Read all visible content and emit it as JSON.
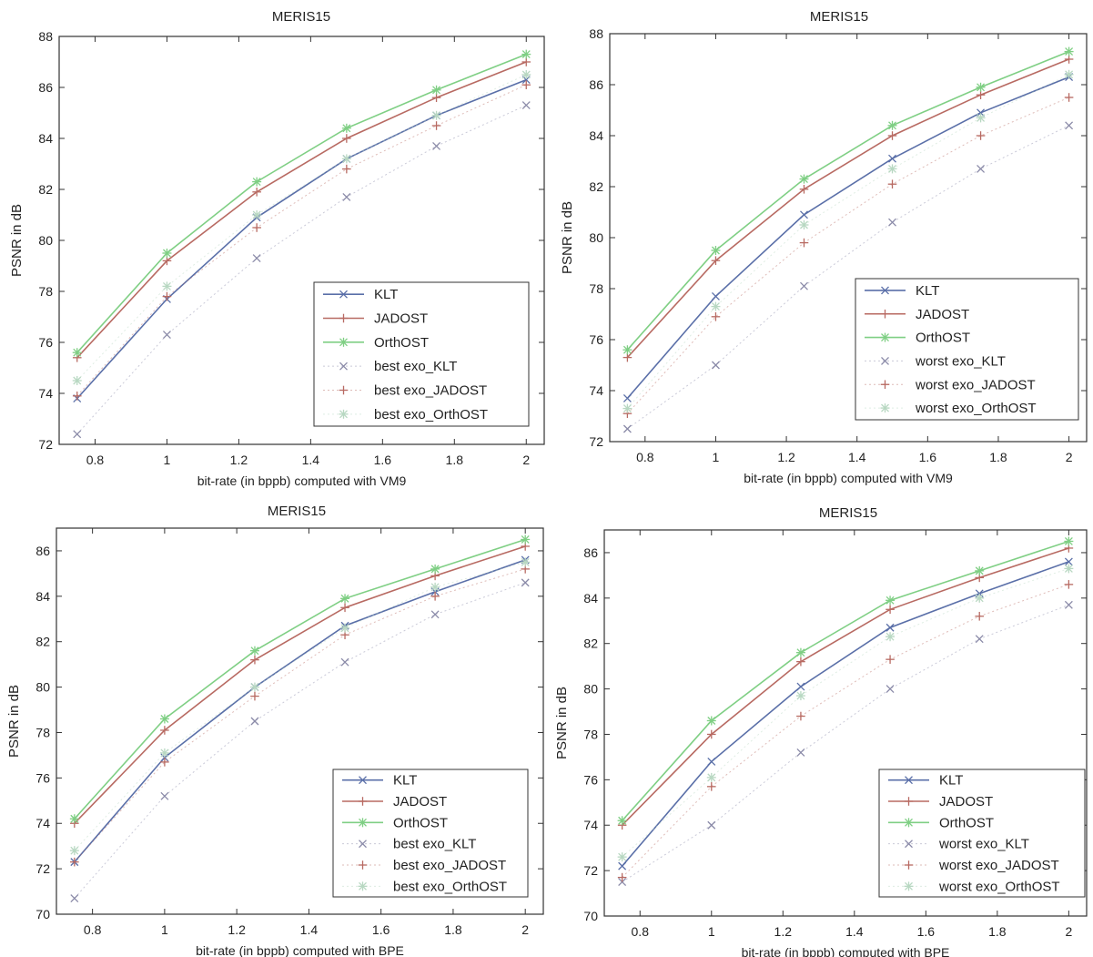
{
  "colors": {
    "KLT": "#5a6fa8",
    "JADOST": "#b86a62",
    "OrthOST": "#7fcf84",
    "exo_KLT": "#8a8aa8",
    "exo_JADOST": "#b86a62",
    "exo_OrthOST": "#b8d8c2"
  },
  "chart_data": [
    {
      "type": "line",
      "title": "MERIS15",
      "xlabel": "bit-rate (in bppb) computed with VM9",
      "ylabel": "PSNR in dB",
      "xlim": [
        0.7,
        2.05
      ],
      "ylim": [
        72,
        88
      ],
      "xticks": [
        0.8,
        1,
        1.2,
        1.4,
        1.6,
        1.8,
        2
      ],
      "yticks": [
        72,
        74,
        76,
        78,
        80,
        82,
        84,
        86,
        88
      ],
      "grid": false,
      "legend_position": "bottom-right",
      "x": [
        0.75,
        1,
        1.25,
        1.5,
        1.75,
        2
      ],
      "series": [
        {
          "name": "KLT",
          "style": "line",
          "marker": "x",
          "color_key": "KLT",
          "values": [
            73.8,
            77.7,
            80.9,
            83.2,
            84.9,
            86.3
          ]
        },
        {
          "name": "JADOST",
          "style": "line",
          "marker": "+",
          "color_key": "JADOST",
          "values": [
            75.4,
            79.2,
            81.9,
            84.0,
            85.6,
            87.0
          ]
        },
        {
          "name": "OrthOST",
          "style": "line",
          "marker": "*",
          "color_key": "OrthOST",
          "values": [
            75.6,
            79.5,
            82.3,
            84.4,
            85.9,
            87.3
          ]
        },
        {
          "name": "best exo_KLT",
          "style": "dots",
          "marker": "x",
          "color_key": "exo_KLT",
          "values": [
            72.4,
            76.3,
            79.3,
            81.7,
            83.7,
            85.3
          ]
        },
        {
          "name": "best exo_JADOST",
          "style": "dots",
          "marker": "+",
          "color_key": "exo_JADOST",
          "values": [
            73.9,
            77.8,
            80.5,
            82.8,
            84.5,
            86.1
          ]
        },
        {
          "name": "best exo_OrthOST",
          "style": "dots",
          "marker": "*",
          "color_key": "exo_OrthOST",
          "values": [
            74.5,
            78.2,
            81.0,
            83.2,
            84.9,
            86.5
          ]
        }
      ]
    },
    {
      "type": "line",
      "title": "MERIS15",
      "xlabel": "bit-rate (in bppb) computed with VM9",
      "ylabel": "PSNR in dB",
      "xlim": [
        0.7,
        2.05
      ],
      "ylim": [
        72,
        88
      ],
      "xticks": [
        0.8,
        1,
        1.2,
        1.4,
        1.6,
        1.8,
        2
      ],
      "yticks": [
        72,
        74,
        76,
        78,
        80,
        82,
        84,
        86,
        88
      ],
      "grid": false,
      "legend_position": "bottom-right",
      "x": [
        0.75,
        1,
        1.25,
        1.5,
        1.75,
        2
      ],
      "series": [
        {
          "name": "KLT",
          "style": "line",
          "marker": "x",
          "color_key": "KLT",
          "values": [
            73.7,
            77.7,
            80.9,
            83.1,
            84.9,
            86.3
          ]
        },
        {
          "name": "JADOST",
          "style": "line",
          "marker": "+",
          "color_key": "JADOST",
          "values": [
            75.3,
            79.1,
            81.9,
            84.0,
            85.6,
            87.0
          ]
        },
        {
          "name": "OrthOST",
          "style": "line",
          "marker": "*",
          "color_key": "OrthOST",
          "values": [
            75.6,
            79.5,
            82.3,
            84.4,
            85.9,
            87.3
          ]
        },
        {
          "name": "worst exo_KLT",
          "style": "dots",
          "marker": "x",
          "color_key": "exo_KLT",
          "values": [
            72.5,
            75.0,
            78.1,
            80.6,
            82.7,
            84.4
          ]
        },
        {
          "name": "worst exo_JADOST",
          "style": "dots",
          "marker": "+",
          "color_key": "exo_JADOST",
          "values": [
            73.1,
            76.9,
            79.8,
            82.1,
            84.0,
            85.5
          ]
        },
        {
          "name": "worst exo_OrthOST",
          "style": "dots",
          "marker": "*",
          "color_key": "exo_OrthOST",
          "values": [
            73.3,
            77.3,
            80.5,
            82.7,
            84.7,
            86.4
          ]
        }
      ]
    },
    {
      "type": "line",
      "title": "MERIS15",
      "xlabel": "bit-rate (in bppb) computed with BPE",
      "ylabel": "PSNR in dB",
      "xlim": [
        0.7,
        2.05
      ],
      "ylim": [
        70,
        87
      ],
      "xticks": [
        0.8,
        1,
        1.2,
        1.4,
        1.6,
        1.8,
        2
      ],
      "yticks": [
        70,
        72,
        74,
        76,
        78,
        80,
        82,
        84,
        86
      ],
      "grid": false,
      "legend_position": "bottom-right",
      "x": [
        0.75,
        1,
        1.25,
        1.5,
        1.75,
        2
      ],
      "series": [
        {
          "name": "KLT",
          "style": "line",
          "marker": "x",
          "color_key": "KLT",
          "values": [
            72.3,
            76.9,
            80.0,
            82.7,
            84.2,
            85.6
          ]
        },
        {
          "name": "JADOST",
          "style": "line",
          "marker": "+",
          "color_key": "JADOST",
          "values": [
            74.0,
            78.1,
            81.2,
            83.5,
            84.9,
            86.2
          ]
        },
        {
          "name": "OrthOST",
          "style": "line",
          "marker": "*",
          "color_key": "OrthOST",
          "values": [
            74.2,
            78.6,
            81.6,
            83.9,
            85.2,
            86.5
          ]
        },
        {
          "name": "best exo_KLT",
          "style": "dots",
          "marker": "x",
          "color_key": "exo_KLT",
          "values": [
            70.7,
            75.2,
            78.5,
            81.1,
            83.2,
            84.6
          ]
        },
        {
          "name": "best exo_JADOST",
          "style": "dots",
          "marker": "+",
          "color_key": "exo_JADOST",
          "values": [
            72.3,
            76.7,
            79.6,
            82.3,
            84.0,
            85.2
          ]
        },
        {
          "name": "best exo_OrthOST",
          "style": "dots",
          "marker": "*",
          "color_key": "exo_OrthOST",
          "values": [
            72.8,
            77.1,
            80.0,
            82.6,
            84.4,
            85.5
          ]
        }
      ]
    },
    {
      "type": "line",
      "title": "MERIS15",
      "xlabel": "bit-rate (in bppb) computed with BPE",
      "ylabel": "PSNR in dB",
      "xlim": [
        0.7,
        2.05
      ],
      "ylim": [
        70,
        87
      ],
      "xticks": [
        0.8,
        1,
        1.2,
        1.4,
        1.6,
        1.8,
        2
      ],
      "yticks": [
        70,
        72,
        74,
        76,
        78,
        80,
        82,
        84,
        86
      ],
      "grid": false,
      "legend_position": "bottom-right",
      "x": [
        0.75,
        1,
        1.25,
        1.5,
        1.75,
        2
      ],
      "series": [
        {
          "name": "KLT",
          "style": "line",
          "marker": "x",
          "color_key": "KLT",
          "values": [
            72.2,
            76.8,
            80.1,
            82.7,
            84.2,
            85.6
          ]
        },
        {
          "name": "JADOST",
          "style": "line",
          "marker": "+",
          "color_key": "JADOST",
          "values": [
            74.0,
            78.0,
            81.2,
            83.5,
            84.9,
            86.2
          ]
        },
        {
          "name": "OrthOST",
          "style": "line",
          "marker": "*",
          "color_key": "OrthOST",
          "values": [
            74.2,
            78.6,
            81.6,
            83.9,
            85.2,
            86.5
          ]
        },
        {
          "name": "worst exo_KLT",
          "style": "dots",
          "marker": "x",
          "color_key": "exo_KLT",
          "values": [
            71.5,
            74.0,
            77.2,
            80.0,
            82.2,
            83.7
          ]
        },
        {
          "name": "worst exo_JADOST",
          "style": "dots",
          "marker": "+",
          "color_key": "exo_JADOST",
          "values": [
            71.7,
            75.7,
            78.8,
            81.3,
            83.2,
            84.6
          ]
        },
        {
          "name": "worst exo_OrthOST",
          "style": "dots",
          "marker": "*",
          "color_key": "exo_OrthOST",
          "values": [
            72.6,
            76.1,
            79.7,
            82.3,
            84.0,
            85.3
          ]
        }
      ]
    }
  ]
}
